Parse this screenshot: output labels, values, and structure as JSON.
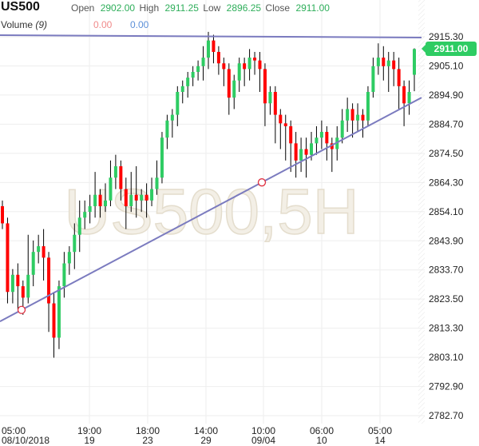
{
  "header": {
    "symbol": "US500",
    "open_label": "Open",
    "open": "2902.00",
    "high_label": "High",
    "high": "2911.25",
    "low_label": "Low",
    "low": "2896.25",
    "close_label": "Close",
    "close": "2911.00",
    "volume_label": "Volume",
    "volume_period": "(9)",
    "volume_value_1": "0.00",
    "volume_value_2": "0.00"
  },
  "colors": {
    "up": "#2ecc63",
    "down": "#ff0000",
    "trendline": "#7b7bbf",
    "value_green": "#2eae5a",
    "volume_red": "#f08a8a",
    "volume_blue": "#5b8fd8"
  },
  "chart_data": {
    "type": "candlestick",
    "watermark": "US500,5H",
    "ylim": [
      2778,
      2919
    ],
    "y_ticks": [
      "2915.30",
      "2905.10",
      "2894.90",
      "2884.70",
      "2874.50",
      "2864.30",
      "2854.10",
      "2843.90",
      "2833.70",
      "2823.50",
      "2813.30",
      "2803.10",
      "2792.90",
      "2782.70"
    ],
    "x_ticks": [
      {
        "time": "05:00",
        "date": "08/10/2018"
      },
      {
        "time": "19:00",
        "date": "19"
      },
      {
        "time": "18:00",
        "date": "23"
      },
      {
        "time": "14:00",
        "date": "29"
      },
      {
        "time": "10:00",
        "date": "09/04"
      },
      {
        "time": "06:00",
        "date": "10"
      },
      {
        "time": "05:00",
        "date": "14"
      }
    ],
    "last_price": "2911.00",
    "grid": true,
    "trendlines": [
      {
        "type": "horizontal",
        "price": 2915.3
      },
      {
        "type": "rising",
        "start_price": 2815.7,
        "end_price": 2894.0
      }
    ],
    "candles_ohlc": [
      [
        2856,
        2858,
        2848,
        2850
      ],
      [
        2850,
        2852,
        2822,
        2826
      ],
      [
        2826,
        2834,
        2822,
        2832
      ],
      [
        2832,
        2836,
        2820,
        2828
      ],
      [
        2828,
        2830,
        2818,
        2824
      ],
      [
        2824,
        2846,
        2822,
        2832
      ],
      [
        2832,
        2844,
        2828,
        2840
      ],
      [
        2840,
        2846,
        2836,
        2842
      ],
      [
        2842,
        2848,
        2830,
        2838
      ],
      [
        2838,
        2840,
        2812,
        2822
      ],
      [
        2822,
        2826,
        2803,
        2810
      ],
      [
        2810,
        2830,
        2806,
        2828
      ],
      [
        2828,
        2840,
        2824,
        2836
      ],
      [
        2836,
        2842,
        2832,
        2840
      ],
      [
        2840,
        2850,
        2834,
        2846
      ],
      [
        2846,
        2858,
        2840,
        2852
      ],
      [
        2852,
        2858,
        2848,
        2854
      ],
      [
        2854,
        2860,
        2850,
        2856
      ],
      [
        2856,
        2868,
        2852,
        2860
      ],
      [
        2860,
        2862,
        2852,
        2856
      ],
      [
        2856,
        2864,
        2854,
        2858
      ],
      [
        2858,
        2872,
        2856,
        2866
      ],
      [
        2866,
        2874,
        2862,
        2870
      ],
      [
        2870,
        2872,
        2858,
        2862
      ],
      [
        2862,
        2866,
        2848,
        2856
      ],
      [
        2856,
        2868,
        2854,
        2860
      ],
      [
        2860,
        2870,
        2852,
        2858
      ],
      [
        2858,
        2862,
        2854,
        2860
      ],
      [
        2860,
        2864,
        2852,
        2858
      ],
      [
        2858,
        2866,
        2856,
        2862
      ],
      [
        2862,
        2872,
        2860,
        2866
      ],
      [
        2866,
        2882,
        2864,
        2880
      ],
      [
        2880,
        2888,
        2876,
        2886
      ],
      [
        2886,
        2890,
        2880,
        2888
      ],
      [
        2888,
        2898,
        2884,
        2896
      ],
      [
        2896,
        2900,
        2892,
        2898
      ],
      [
        2898,
        2903,
        2894,
        2901
      ],
      [
        2901,
        2905,
        2898,
        2903
      ],
      [
        2903,
        2907,
        2900,
        2905
      ],
      [
        2905,
        2912,
        2900,
        2908
      ],
      [
        2908,
        2917,
        2904,
        2914
      ],
      [
        2914,
        2916,
        2906,
        2910
      ],
      [
        2910,
        2912,
        2902,
        2906
      ],
      [
        2906,
        2908,
        2898,
        2904
      ],
      [
        2904,
        2906,
        2888,
        2894
      ],
      [
        2894,
        2902,
        2890,
        2900
      ],
      [
        2900,
        2908,
        2896,
        2906
      ],
      [
        2906,
        2908,
        2898,
        2904
      ],
      [
        2904,
        2911,
        2900,
        2908
      ],
      [
        2908,
        2910,
        2902,
        2907
      ],
      [
        2907,
        2910,
        2896,
        2904
      ],
      [
        2904,
        2906,
        2884,
        2892
      ],
      [
        2892,
        2898,
        2888,
        2896
      ],
      [
        2896,
        2898,
        2878,
        2888
      ],
      [
        2888,
        2890,
        2876,
        2885
      ],
      [
        2885,
        2888,
        2872,
        2884
      ],
      [
        2884,
        2886,
        2868,
        2878
      ],
      [
        2878,
        2882,
        2866,
        2872
      ],
      [
        2872,
        2880,
        2868,
        2876
      ],
      [
        2876,
        2880,
        2866,
        2874
      ],
      [
        2874,
        2882,
        2872,
        2878
      ],
      [
        2878,
        2884,
        2874,
        2880
      ],
      [
        2880,
        2886,
        2876,
        2882
      ],
      [
        2882,
        2884,
        2872,
        2878
      ],
      [
        2878,
        2880,
        2868,
        2876
      ],
      [
        2876,
        2884,
        2872,
        2880
      ],
      [
        2880,
        2890,
        2878,
        2886
      ],
      [
        2886,
        2894,
        2882,
        2890
      ],
      [
        2890,
        2892,
        2880,
        2886
      ],
      [
        2886,
        2892,
        2882,
        2888
      ],
      [
        2888,
        2890,
        2880,
        2886
      ],
      [
        2886,
        2898,
        2884,
        2896
      ],
      [
        2896,
        2908,
        2894,
        2905
      ],
      [
        2905,
        2913,
        2902,
        2908
      ],
      [
        2908,
        2912,
        2900,
        2905
      ],
      [
        2905,
        2910,
        2896,
        2907
      ],
      [
        2907,
        2910,
        2898,
        2904
      ],
      [
        2904,
        2908,
        2890,
        2898
      ],
      [
        2898,
        2900,
        2884,
        2892
      ],
      [
        2892,
        2900,
        2888,
        2896
      ],
      [
        2902,
        2911.25,
        2896.25,
        2911
      ]
    ]
  }
}
